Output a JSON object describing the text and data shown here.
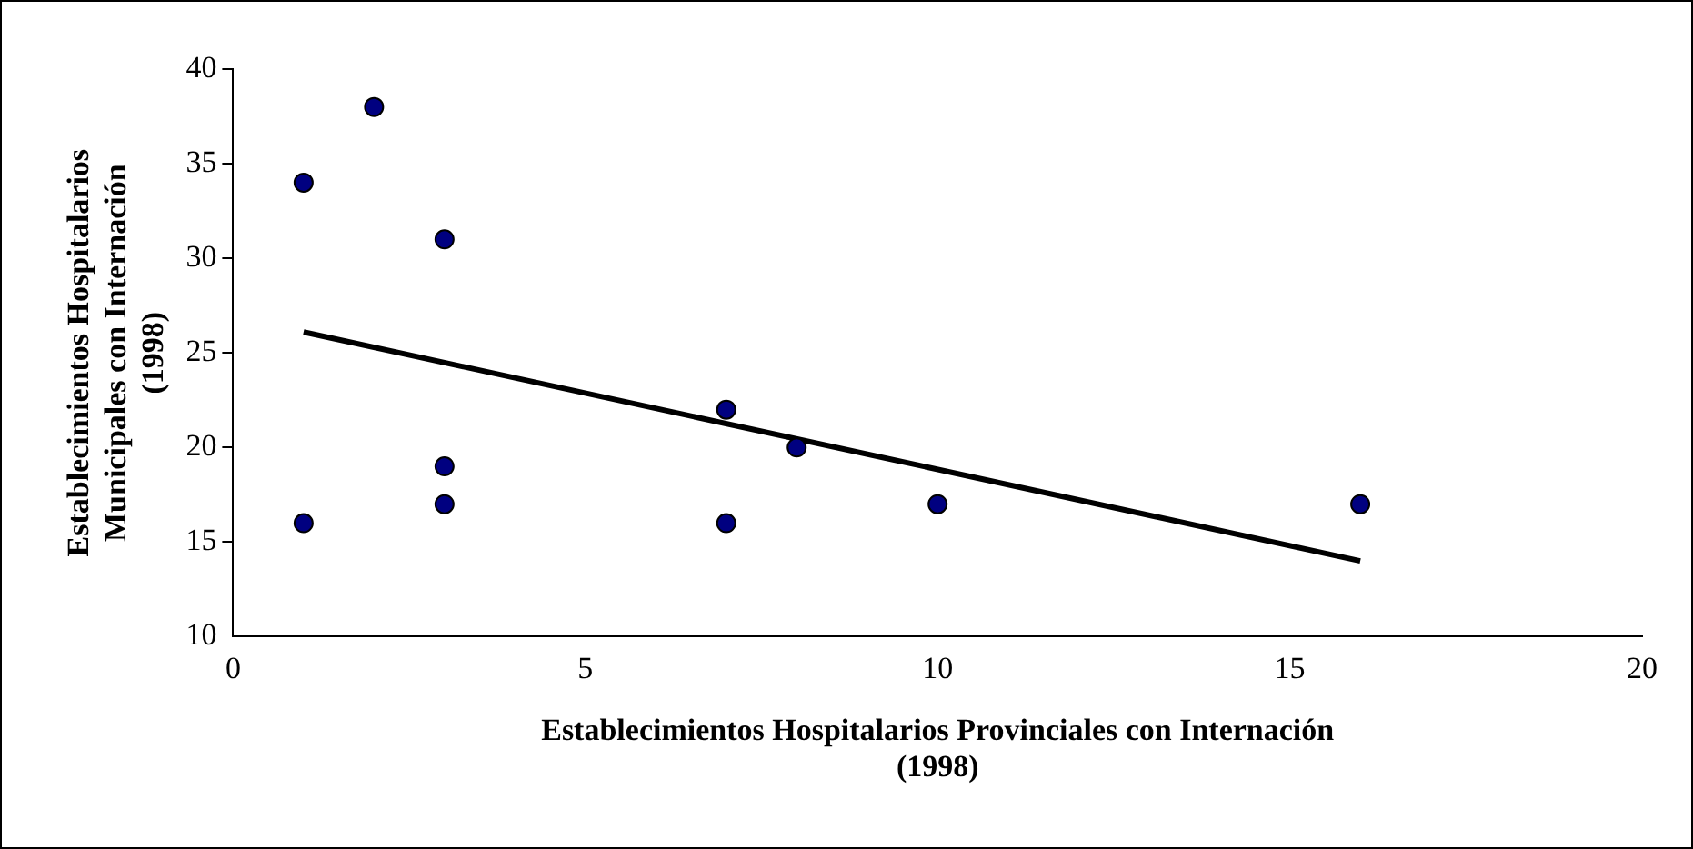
{
  "chart_data": {
    "type": "scatter",
    "xlabel": "Establecimientos Hospitalarios Provinciales con Internación\n(1998)",
    "ylabel": "Establecimientos Hospitalarios\nMunicipales con Internación\n(1998)",
    "xlim": [
      0,
      20
    ],
    "xticks": [
      0,
      5,
      10,
      15,
      20
    ],
    "ylim": [
      10,
      40
    ],
    "yticks": [
      10,
      15,
      20,
      25,
      30,
      35,
      40
    ],
    "grid": false,
    "legend": false,
    "marker": "circle",
    "series": [
      {
        "color": "#000080",
        "x": [
          1,
          1,
          2,
          3,
          3,
          3,
          7,
          7,
          8,
          10,
          16
        ],
        "values": [
          34,
          16,
          38,
          31,
          19,
          17,
          22,
          16,
          20,
          17,
          17
        ]
      },
      {
        "type": "line",
        "marker": "none",
        "color": "#000000",
        "x": [
          1,
          16
        ],
        "values": [
          26.1,
          14
        ]
      }
    ]
  }
}
